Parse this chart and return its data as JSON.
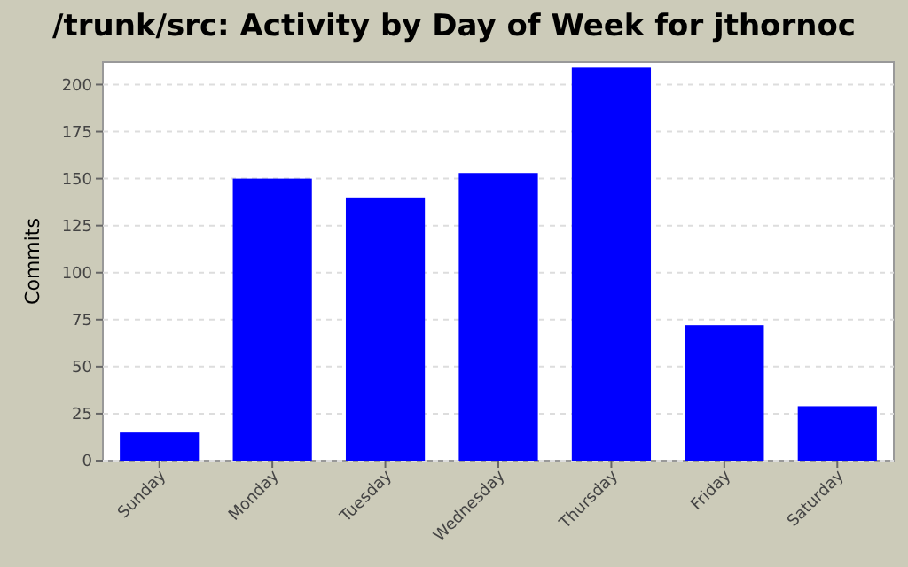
{
  "chart_data": {
    "type": "bar",
    "title": "/trunk/src: Activity by Day of Week for jthornoc",
    "ylabel": "Commits",
    "categories": [
      "Sunday",
      "Monday",
      "Tuesday",
      "Wednesday",
      "Thursday",
      "Friday",
      "Saturday"
    ],
    "values": [
      15,
      150,
      140,
      153,
      209,
      72,
      29
    ],
    "color": "#0000ff",
    "ylim": [
      0,
      212
    ],
    "yticks": [
      0,
      25,
      50,
      75,
      100,
      125,
      150,
      175,
      200
    ],
    "grid": "y"
  }
}
